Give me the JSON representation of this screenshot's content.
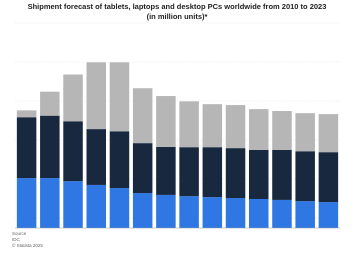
{
  "chart_data": {
    "type": "stacked_bar",
    "title": "Shipment forecast of tablets, laptops and desktop PCs worldwide from 2010 to 2023",
    "subtitle": "(in million units)*",
    "ylim": [
      0,
      625
    ],
    "grid": true,
    "series": [
      {
        "color": "#2f77e2",
        "values": [
          160,
          160,
          150,
          138,
          128,
          112,
          106,
          102,
          99,
          96,
          93,
          90,
          86,
          83
        ]
      },
      {
        "color": "#17283f",
        "values": [
          195,
          200,
          192,
          179,
          182,
          160,
          154,
          157,
          160,
          160,
          157,
          160,
          160,
          160
        ]
      },
      {
        "color": "#b6b6b6",
        "values": [
          22,
          77,
          150,
          214,
          221,
          176,
          163,
          147,
          138,
          138,
          131,
          125,
          122,
          122
        ]
      }
    ],
    "source": {
      "label": "Source",
      "text": "IDC",
      "copyright": "© Statista 2025"
    }
  }
}
